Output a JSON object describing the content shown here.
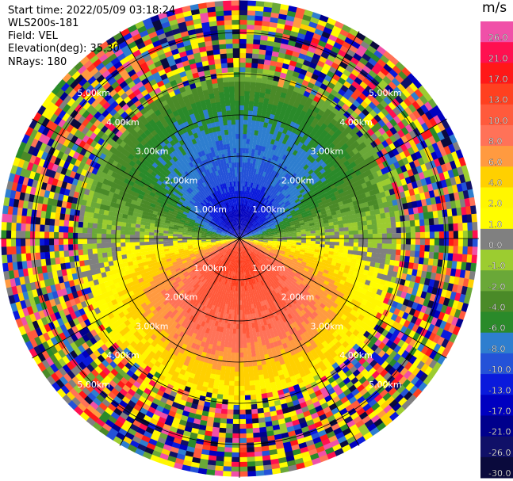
{
  "header": {
    "start_time": "Start time: 2022/05/09 03:18:24",
    "instrument": "WLS200s-181",
    "field": "Field: VEL",
    "elevation": "Elevation(deg): 35.30",
    "nrays": "NRays: 180"
  },
  "colorbar": {
    "unit": "m/s",
    "bins": [
      {
        "label": "26.0",
        "color": "#f050a8"
      },
      {
        "label": "21.0",
        "color": "#ff1050"
      },
      {
        "label": "17.0",
        "color": "#ff1818"
      },
      {
        "label": "13.0",
        "color": "#ff4020"
      },
      {
        "label": "10.0",
        "color": "#ff5a3c"
      },
      {
        "label": "8.0",
        "color": "#ff7258"
      },
      {
        "label": "6.0",
        "color": "#ff9a40"
      },
      {
        "label": "4.0",
        "color": "#ffd000"
      },
      {
        "label": "2.0",
        "color": "#fff600"
      },
      {
        "label": "1.0",
        "color": "#fffd00"
      },
      {
        "label": "0.0",
        "color": "#808080"
      },
      {
        "label": "-1.0",
        "color": "#9ccc30"
      },
      {
        "label": "-2.0",
        "color": "#6aa838"
      },
      {
        "label": "-4.0",
        "color": "#4a8a28"
      },
      {
        "label": "-6.0",
        "color": "#2a8a2a"
      },
      {
        "label": "-8.0",
        "color": "#2e7ecf"
      },
      {
        "label": "-10.0",
        "color": "#2452d8"
      },
      {
        "label": "-13.0",
        "color": "#0a1adc"
      },
      {
        "label": "-17.0",
        "color": "#0000c0"
      },
      {
        "label": "-21.0",
        "color": "#00008c"
      },
      {
        "label": "-26.0",
        "color": "#101068"
      },
      {
        "label": "-30.0",
        "color": "#0a0a3c"
      }
    ]
  },
  "chart_data": {
    "type": "heatmap",
    "projection": "polar",
    "field": "VEL",
    "units": "m/s",
    "elevation_deg": 35.3,
    "n_rays": 180,
    "range_max_km": 5.8,
    "range_rings_km": [
      1,
      2,
      3,
      4,
      5
    ],
    "range_ring_labels": [
      "1.00km",
      "2.00km",
      "3.00km",
      "4.00km",
      "5.00km"
    ],
    "velocity_by_range_north_km": [
      {
        "range_km": 0.5,
        "value": -17
      },
      {
        "range_km": 1.5,
        "value": -10
      },
      {
        "range_km": 2.5,
        "value": -8
      },
      {
        "range_km": 3.3,
        "value": -6
      },
      {
        "range_km": 4.0,
        "value": -2
      }
    ],
    "velocity_by_range_south_km": [
      {
        "range_km": 0.5,
        "value": 13
      },
      {
        "range_km": 1.5,
        "value": 10
      },
      {
        "range_km": 2.5,
        "value": 8
      },
      {
        "range_km": 3.3,
        "value": 4
      },
      {
        "range_km": 4.0,
        "value": 2
      }
    ],
    "noise_beyond_km": 3.8,
    "colorbar_range": [
      -30,
      26
    ]
  }
}
